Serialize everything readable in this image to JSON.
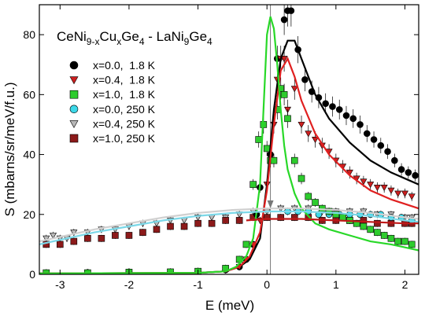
{
  "chart_data": {
    "type": "scatter",
    "title": {
      "base": "CeNi",
      "sub1": "9-x",
      "mid1": "Cu",
      "sub2": "x",
      "mid2": "Ge",
      "sub3": "4",
      "mid3": " - LaNi",
      "sub4": "9",
      "mid4": "Ge",
      "sub5": "4"
    },
    "xlabel": "E (meV)",
    "ylabel": "S (mbarns/sr/meV/f.u.)",
    "xlim": [
      -3.3,
      2.2
    ],
    "ylim": [
      0,
      90
    ],
    "xticks": [
      -3,
      -2,
      -1,
      0,
      1,
      2
    ],
    "yticks": [
      0,
      20,
      40,
      60,
      80
    ],
    "grid": false,
    "legend_position": "upper-left",
    "series": [
      {
        "name": "x=0.0,  1.8 K",
        "marker": "circle",
        "color": "#000000",
        "x": [
          -3.2,
          -2.6,
          -2.0,
          -1.4,
          -1.0,
          -0.6,
          -0.4,
          -0.3,
          -0.2,
          -0.15,
          -0.1,
          0.05,
          0.15,
          0.25,
          0.3,
          0.35,
          0.45,
          0.55,
          0.65,
          0.75,
          0.85,
          0.95,
          1.05,
          1.15,
          1.25,
          1.35,
          1.45,
          1.55,
          1.65,
          1.75,
          1.85,
          1.95,
          2.05,
          2.15
        ],
        "y": [
          0.5,
          0.6,
          0.8,
          0.7,
          1.0,
          1.5,
          2.5,
          5,
          10,
          20,
          29,
          40,
          72,
          85,
          88,
          88,
          75,
          65,
          61,
          59,
          57,
          56,
          55,
          53,
          52,
          50,
          47,
          45,
          43,
          41,
          38,
          35,
          34,
          33
        ]
      },
      {
        "name": "x=0.4,  1.8 K",
        "marker": "triangle-down",
        "color": "#cc2020",
        "x": [
          -3.2,
          -2.6,
          -2.0,
          -1.4,
          -1.0,
          -0.6,
          -0.4,
          -0.3,
          -0.2,
          -0.1,
          0.0,
          0.1,
          0.15,
          0.2,
          0.25,
          0.3,
          0.4,
          0.5,
          0.6,
          0.7,
          0.8,
          0.9,
          1.0,
          1.1,
          1.2,
          1.3,
          1.4,
          1.5,
          1.6,
          1.7,
          1.8,
          1.9,
          2.0,
          2.1
        ],
        "y": [
          0.5,
          0.5,
          0.7,
          0.8,
          1.0,
          1.5,
          2.5,
          5,
          10,
          18,
          30,
          50,
          65,
          72,
          72,
          55,
          62,
          50,
          47,
          45,
          43,
          41,
          38,
          36,
          34,
          32,
          31,
          30,
          29,
          29,
          28,
          27,
          27,
          26
        ]
      },
      {
        "name": "x=1.0,  1.8 K",
        "marker": "square",
        "color": "#2ecc2e",
        "x": [
          -3.2,
          -2.6,
          -2.0,
          -1.4,
          -1.0,
          -0.6,
          -0.4,
          -0.3,
          -0.2,
          -0.12,
          -0.05,
          0.0,
          0.05,
          0.1,
          0.15,
          0.2,
          0.25,
          0.3,
          0.4,
          0.5,
          0.6,
          0.7,
          0.8,
          0.9,
          1.0,
          1.1,
          1.2,
          1.3,
          1.4,
          1.5,
          1.6,
          1.7,
          1.8,
          1.9,
          2.0,
          2.1
        ],
        "y": [
          0.5,
          0.5,
          0.7,
          0.8,
          1.0,
          2,
          5,
          10,
          30,
          45,
          50,
          42,
          38,
          38,
          55,
          62,
          60,
          52,
          38,
          32,
          26,
          24,
          22,
          21,
          20,
          19,
          18,
          17,
          16,
          15,
          14,
          13,
          12,
          11,
          11,
          10
        ]
      },
      {
        "name": "x=0.0, 250 K",
        "marker": "circle",
        "color": "#3cd8e8",
        "x": [
          0.3,
          0.45,
          0.6,
          0.75,
          0.9,
          1.05,
          1.2,
          1.35,
          1.5,
          1.65,
          1.8,
          1.95,
          2.1
        ],
        "y": [
          21,
          21,
          21,
          20,
          20,
          20,
          20,
          20,
          20,
          20,
          19,
          19,
          18
        ]
      },
      {
        "name": "x=0.4, 250 K",
        "marker": "triangle-down",
        "color": "#b8b8b8",
        "x": [
          -3.2,
          -3.1,
          -3.0,
          -2.9,
          -2.8,
          -2.6,
          -2.4,
          -2.2,
          -2.0,
          -1.8,
          -1.6,
          -1.4,
          -1.2,
          -1.0,
          -0.8,
          -0.6,
          -0.4,
          -0.2,
          0.0,
          0.2,
          0.4,
          0.6,
          0.8,
          1.0,
          1.2,
          1.4,
          1.6,
          1.8,
          2.0,
          2.1
        ],
        "y": [
          12,
          13,
          12,
          12,
          14,
          14,
          15,
          15,
          16,
          17,
          17,
          18,
          18,
          19,
          19,
          19,
          20,
          21,
          21,
          22,
          22,
          22,
          21,
          21,
          21,
          21,
          20,
          20,
          19,
          19
        ]
      },
      {
        "name": "x=1.0, 250 K",
        "marker": "square",
        "color": "#8c1a1a",
        "x": [
          -3.2,
          -3.0,
          -2.8,
          -2.6,
          -2.4,
          -2.2,
          -2.0,
          -1.8,
          -1.6,
          -1.4,
          -1.2,
          -1.0,
          -0.8,
          -0.6,
          -0.4,
          -0.2,
          0.0,
          0.2,
          0.4,
          0.6,
          0.8,
          1.0,
          1.2,
          1.4,
          1.6,
          1.8,
          2.0,
          2.1
        ],
        "y": [
          10,
          10,
          11,
          12,
          12,
          13,
          13,
          14,
          15,
          16,
          16,
          17,
          17,
          18,
          18,
          19,
          19,
          19,
          19,
          19,
          18,
          18,
          18,
          18,
          17,
          17,
          17,
          17
        ]
      }
    ],
    "fits": [
      {
        "color": "#000000",
        "x": [
          -3.3,
          -1.0,
          -0.6,
          -0.4,
          -0.25,
          -0.1,
          0.0,
          0.1,
          0.2,
          0.3,
          0.4,
          0.5,
          0.7,
          0.9,
          1.2,
          1.5,
          1.8,
          2.2
        ],
        "y": [
          0.3,
          0.5,
          1.0,
          2.5,
          5,
          12,
          30,
          55,
          72,
          78,
          78,
          72,
          60,
          52,
          44,
          38,
          34,
          30
        ]
      },
      {
        "color": "#e02020",
        "x": [
          -3.3,
          -1.0,
          -0.6,
          -0.4,
          -0.25,
          -0.1,
          0.0,
          0.1,
          0.2,
          0.3,
          0.4,
          0.5,
          0.7,
          0.9,
          1.2,
          1.5,
          1.8,
          2.2
        ],
        "y": [
          0.3,
          0.5,
          1.0,
          2.5,
          6,
          14,
          28,
          50,
          68,
          72,
          66,
          58,
          47,
          40,
          33,
          28,
          25,
          22
        ]
      },
      {
        "color": "#28d828",
        "x": [
          -3.3,
          -1.0,
          -0.6,
          -0.45,
          -0.3,
          -0.2,
          -0.1,
          0.0,
          0.05,
          0.1,
          0.15,
          0.2,
          0.25,
          0.3,
          0.4,
          0.5,
          0.7,
          0.9,
          1.2,
          1.5,
          1.8,
          2.2
        ],
        "y": [
          0.3,
          0.5,
          1.0,
          2.5,
          6,
          12,
          30,
          80,
          86,
          82,
          70,
          55,
          43,
          35,
          27,
          22,
          17,
          15,
          13,
          11,
          10,
          8
        ]
      },
      {
        "color": "#7cd8e8",
        "x": [
          -3.3,
          -2.5,
          -2.0,
          -1.5,
          -1.0,
          -0.5,
          0.0,
          0.5,
          1.0,
          1.5,
          2.0,
          2.2
        ],
        "y": [
          10,
          14,
          16,
          18,
          19.5,
          20.5,
          21,
          21,
          20.5,
          19.5,
          18,
          17.5
        ]
      },
      {
        "color": "#d0d0d0",
        "x": [
          -3.3,
          -2.5,
          -2.0,
          -1.5,
          -1.0,
          -0.5,
          0.0,
          0.5,
          1.0,
          1.5,
          2.0,
          2.2
        ],
        "y": [
          11,
          15,
          17,
          19,
          20.5,
          21.5,
          22,
          22,
          21.5,
          20.5,
          19,
          18.5
        ]
      },
      {
        "color": "#c01818",
        "x": [
          -0.3,
          0.0,
          0.5,
          1.0,
          1.5,
          2.0,
          2.2
        ],
        "y": [
          18,
          18.5,
          18.5,
          18,
          17.5,
          17,
          17
        ]
      }
    ],
    "vertical_marker": {
      "x": 0.05,
      "color": "#777777"
    }
  }
}
